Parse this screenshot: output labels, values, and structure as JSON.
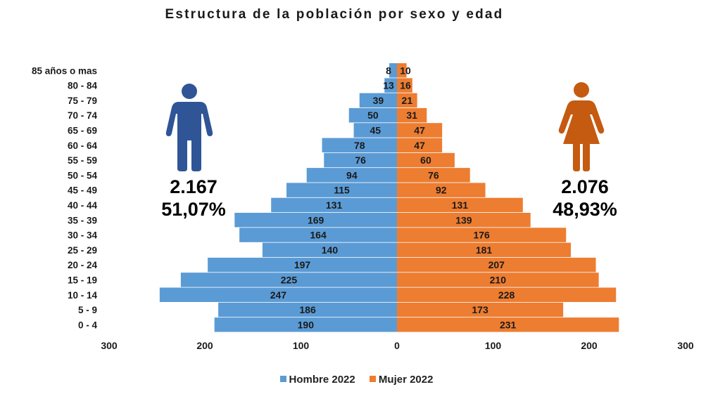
{
  "chart_data": {
    "type": "bar",
    "orientation": "horizontal-pyramid",
    "title": "Estructura de la población por sexo y edad",
    "categories": [
      "0 - 4",
      "5 - 9",
      "10 - 14",
      "15 - 19",
      "20 - 24",
      "25 - 29",
      "30 - 34",
      "35 - 39",
      "40 - 44",
      "45 - 49",
      "50 - 54",
      "55 - 59",
      "60 - 64",
      "65 - 69",
      "70 - 74",
      "75 - 79",
      "80 - 84",
      "85 años o mas"
    ],
    "series": [
      {
        "name": "Hombre 2022",
        "color": "#5b9bd5",
        "side": "left",
        "values": [
          190,
          186,
          247,
          225,
          197,
          140,
          164,
          169,
          131,
          115,
          94,
          76,
          78,
          45,
          50,
          39,
          13,
          8
        ]
      },
      {
        "name": "Mujer 2022",
        "color": "#ed7d31",
        "side": "right",
        "values": [
          231,
          173,
          228,
          210,
          207,
          181,
          176,
          139,
          131,
          92,
          76,
          60,
          47,
          47,
          31,
          21,
          16,
          10
        ]
      }
    ],
    "xaxis_ticks": [
      "300",
      "200",
      "100",
      "0",
      "100",
      "200",
      "300"
    ],
    "xlim": [
      -300,
      300
    ],
    "legend_position": "bottom"
  },
  "totals": {
    "men": {
      "count": "2.167",
      "percent": "51,07%",
      "icon": "man-icon",
      "color": "#2f5597"
    },
    "women": {
      "count": "2.076",
      "percent": "48,93%",
      "icon": "woman-icon",
      "color": "#c55a11"
    }
  }
}
